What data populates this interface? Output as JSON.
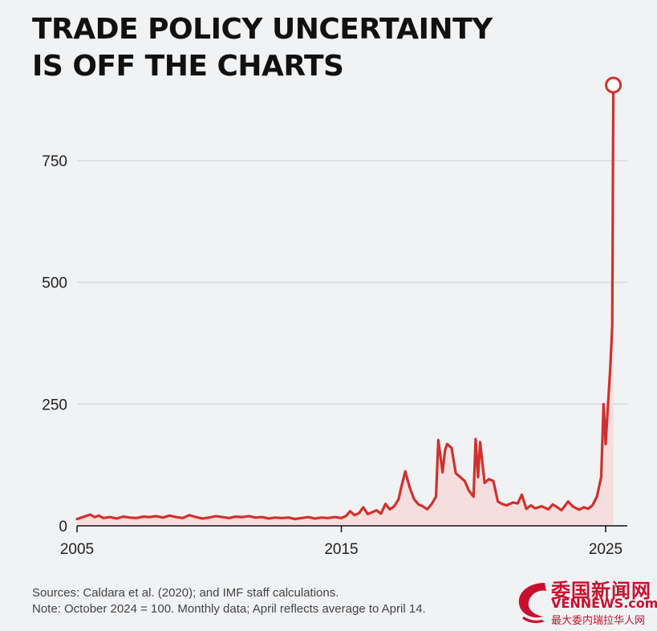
{
  "title": {
    "line1": "TRADE POLICY UNCERTAINTY",
    "line2": "IS OFF THE CHARTS"
  },
  "notes": {
    "sources": "Sources: Caldara et al. (2020); and IMF staff calculations.",
    "note": "Note: October 2024 = 100. Monthly data; April reflects average to April 14."
  },
  "watermark": {
    "chinese": "委国新闻网",
    "english": "VENNEWS.com",
    "subtitle": "最大委内瑞拉华人网"
  },
  "colors": {
    "line": "#d0312d",
    "fill": "#f7dede",
    "grid": "#d6d8dc",
    "watermark": "#c8102e"
  },
  "chart_data": {
    "type": "area",
    "title": "",
    "xlabel": "",
    "ylabel": "",
    "xlim": [
      2005,
      2025.8
    ],
    "ylim": [
      0,
      900
    ],
    "x_ticks": [
      2005,
      2015,
      2025
    ],
    "x_tick_labels": [
      "2005",
      "2015",
      "2025"
    ],
    "y_ticks": [
      0,
      250,
      500,
      750
    ],
    "y_tick_labels": [
      "0",
      "250",
      "500",
      "750"
    ],
    "grid": "horizontal",
    "highlight_last_point": true,
    "series": [
      {
        "points": [
          [
            2005.0,
            14
          ],
          [
            2005.17,
            17
          ],
          [
            2005.33,
            20
          ],
          [
            2005.5,
            23
          ],
          [
            2005.67,
            18
          ],
          [
            2005.83,
            21
          ],
          [
            2006.0,
            16
          ],
          [
            2006.25,
            18
          ],
          [
            2006.5,
            15
          ],
          [
            2006.75,
            19
          ],
          [
            2007.0,
            17
          ],
          [
            2007.25,
            16
          ],
          [
            2007.5,
            19
          ],
          [
            2007.75,
            18
          ],
          [
            2008.0,
            20
          ],
          [
            2008.25,
            17
          ],
          [
            2008.5,
            21
          ],
          [
            2008.75,
            18
          ],
          [
            2009.0,
            16
          ],
          [
            2009.25,
            22
          ],
          [
            2009.5,
            18
          ],
          [
            2009.75,
            15
          ],
          [
            2010.0,
            17
          ],
          [
            2010.25,
            20
          ],
          [
            2010.5,
            18
          ],
          [
            2010.75,
            16
          ],
          [
            2011.0,
            19
          ],
          [
            2011.25,
            18
          ],
          [
            2011.5,
            20
          ],
          [
            2011.75,
            17
          ],
          [
            2012.0,
            18
          ],
          [
            2012.25,
            15
          ],
          [
            2012.5,
            17
          ],
          [
            2012.75,
            16
          ],
          [
            2013.0,
            17
          ],
          [
            2013.25,
            14
          ],
          [
            2013.5,
            16
          ],
          [
            2013.75,
            18
          ],
          [
            2014.0,
            15
          ],
          [
            2014.25,
            17
          ],
          [
            2014.5,
            16
          ],
          [
            2014.75,
            18
          ],
          [
            2015.0,
            16
          ],
          [
            2015.17,
            20
          ],
          [
            2015.33,
            30
          ],
          [
            2015.5,
            22
          ],
          [
            2015.67,
            26
          ],
          [
            2015.83,
            38
          ],
          [
            2016.0,
            24
          ],
          [
            2016.17,
            28
          ],
          [
            2016.33,
            32
          ],
          [
            2016.5,
            25
          ],
          [
            2016.67,
            45
          ],
          [
            2016.83,
            34
          ],
          [
            2017.0,
            40
          ],
          [
            2017.17,
            55
          ],
          [
            2017.25,
            75
          ],
          [
            2017.42,
            112
          ],
          [
            2017.58,
            80
          ],
          [
            2017.75,
            55
          ],
          [
            2017.92,
            44
          ],
          [
            2018.08,
            40
          ],
          [
            2018.25,
            34
          ],
          [
            2018.42,
            45
          ],
          [
            2018.58,
            60
          ],
          [
            2018.67,
            176
          ],
          [
            2018.83,
            110
          ],
          [
            2018.92,
            155
          ],
          [
            2019.0,
            168
          ],
          [
            2019.17,
            160
          ],
          [
            2019.33,
            108
          ],
          [
            2019.5,
            100
          ],
          [
            2019.67,
            92
          ],
          [
            2019.83,
            72
          ],
          [
            2020.0,
            60
          ],
          [
            2020.08,
            178
          ],
          [
            2020.17,
            100
          ],
          [
            2020.25,
            172
          ],
          [
            2020.42,
            88
          ],
          [
            2020.58,
            96
          ],
          [
            2020.75,
            92
          ],
          [
            2020.92,
            50
          ],
          [
            2021.08,
            45
          ],
          [
            2021.25,
            42
          ],
          [
            2021.5,
            48
          ],
          [
            2021.67,
            46
          ],
          [
            2021.83,
            64
          ],
          [
            2022.0,
            35
          ],
          [
            2022.17,
            42
          ],
          [
            2022.33,
            36
          ],
          [
            2022.58,
            40
          ],
          [
            2022.83,
            34
          ],
          [
            2023.0,
            44
          ],
          [
            2023.17,
            38
          ],
          [
            2023.33,
            32
          ],
          [
            2023.58,
            50
          ],
          [
            2023.75,
            40
          ],
          [
            2024.0,
            33
          ],
          [
            2024.17,
            38
          ],
          [
            2024.33,
            35
          ],
          [
            2024.5,
            42
          ],
          [
            2024.67,
            60
          ],
          [
            2024.83,
            100
          ],
          [
            2024.92,
            250
          ],
          [
            2025.0,
            168
          ],
          [
            2025.08,
            240
          ],
          [
            2025.17,
            320
          ],
          [
            2025.25,
            410
          ],
          [
            2025.29,
            905
          ]
        ]
      }
    ]
  }
}
